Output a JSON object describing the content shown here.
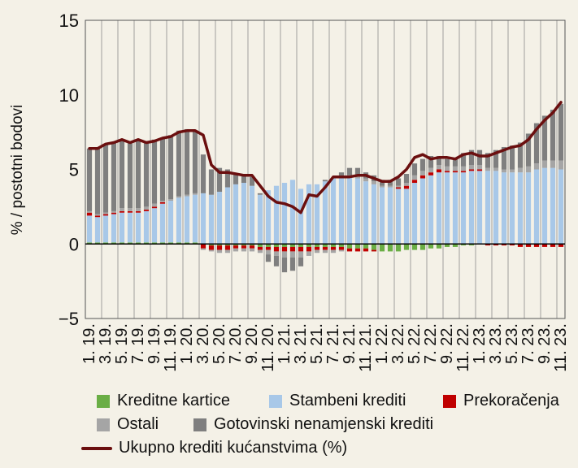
{
  "chart_data": {
    "type": "bar",
    "stacked": true,
    "title": "",
    "xlabel": "",
    "ylabel": "% / postotni bodovi",
    "ylim": [
      -5,
      15
    ],
    "yticks": [
      -5,
      0,
      5,
      10,
      15
    ],
    "ytick_labels": [
      "−5",
      "0",
      "5",
      "10",
      "15"
    ],
    "grid": "vertical",
    "legend_position": "bottom",
    "categories": [
      "1.19.",
      "2.19.",
      "3.19.",
      "4.19.",
      "5.19.",
      "6.19.",
      "7.19.",
      "8.19.",
      "9.19.",
      "10.19.",
      "11.19.",
      "12.19.",
      "1.20.",
      "2.20.",
      "3.20.",
      "4.20.",
      "5.20.",
      "6.20.",
      "7.20.",
      "8.20.",
      "9.20.",
      "10.20.",
      "11.20.",
      "12.20.",
      "1.21.",
      "2.21.",
      "3.21.",
      "4.21.",
      "5.21.",
      "6.21.",
      "7.21.",
      "8.21.",
      "9.21.",
      "10.21.",
      "11.21.",
      "12.21.",
      "1.22.",
      "2.22.",
      "3.22.",
      "4.22.",
      "5.22.",
      "6.22.",
      "7.22.",
      "8.22.",
      "9.22.",
      "10.22.",
      "11.22.",
      "12.22.",
      "1.23.",
      "2.23.",
      "3.23.",
      "4.23.",
      "5.23.",
      "6.23.",
      "7.23.",
      "8.23.",
      "9.23.",
      "10.23.",
      "11.23."
    ],
    "tick_labels": [
      "1. 19.",
      "3. 19.",
      "5. 19.",
      "7. 19.",
      "9. 19.",
      "11. 19.",
      "1. 20.",
      "3. 20.",
      "5. 20.",
      "7. 20.",
      "9. 20.",
      "11. 20.",
      "1. 21.",
      "3. 21.",
      "5. 21.",
      "7. 21.",
      "9. 21.",
      "11. 21.",
      "1. 22.",
      "3. 22.",
      "5. 22.",
      "7. 22.",
      "9. 22.",
      "11. 22.",
      "1. 23.",
      "3. 23.",
      "5. 23.",
      "7. 23.",
      "9. 23.",
      "11. 23."
    ],
    "series": [
      {
        "name": "Kreditne kartice",
        "color": "#6aae45",
        "values": [
          0.1,
          0.1,
          0.1,
          0.1,
          0.1,
          0.1,
          0.1,
          0.1,
          0.1,
          0.1,
          0.1,
          0.1,
          0.1,
          0.1,
          0.0,
          -0.1,
          -0.1,
          -0.1,
          -0.1,
          -0.1,
          -0.1,
          -0.2,
          -0.2,
          -0.2,
          -0.2,
          -0.2,
          -0.2,
          -0.2,
          -0.2,
          -0.2,
          -0.2,
          -0.2,
          -0.3,
          -0.3,
          -0.3,
          -0.4,
          -0.5,
          -0.5,
          -0.5,
          -0.4,
          -0.4,
          -0.4,
          -0.3,
          -0.3,
          -0.2,
          -0.2,
          -0.1,
          -0.1,
          0.0,
          0.0,
          0.0,
          0.0,
          0.0,
          0.0,
          0.0,
          0.0,
          0.0,
          0.0,
          0.0
        ]
      },
      {
        "name": "Stambeni krediti",
        "color": "#a8c8e8",
        "values": [
          1.8,
          1.7,
          1.8,
          1.9,
          2.0,
          2.0,
          2.0,
          2.1,
          2.3,
          2.6,
          2.8,
          3.0,
          3.1,
          3.2,
          3.4,
          3.3,
          3.5,
          3.8,
          4.0,
          4.1,
          3.9,
          3.3,
          3.6,
          3.9,
          4.1,
          4.3,
          3.7,
          4.0,
          4.0,
          4.2,
          4.4,
          4.4,
          4.5,
          4.4,
          4.2,
          4.0,
          3.8,
          3.8,
          3.7,
          3.7,
          4.1,
          4.4,
          4.6,
          4.8,
          4.8,
          4.8,
          4.8,
          4.9,
          4.9,
          4.9,
          4.9,
          4.8,
          4.8,
          4.8,
          4.8,
          5.0,
          5.1,
          5.1,
          5.0
        ]
      },
      {
        "name": "Prekoračenja",
        "color": "#c00000",
        "values": [
          0.2,
          0.1,
          0.1,
          0.1,
          0.1,
          0.1,
          0.1,
          0.1,
          0.1,
          0.1,
          0.0,
          0.0,
          0.0,
          0.0,
          -0.3,
          -0.3,
          -0.3,
          -0.3,
          -0.2,
          -0.2,
          -0.2,
          -0.2,
          -0.2,
          -0.3,
          -0.3,
          -0.3,
          -0.3,
          -0.3,
          -0.2,
          -0.2,
          -0.2,
          -0.2,
          -0.2,
          -0.2,
          -0.2,
          -0.1,
          0.0,
          0.0,
          0.1,
          0.2,
          0.2,
          0.2,
          0.2,
          0.2,
          0.1,
          0.1,
          0.1,
          0.1,
          0.1,
          -0.1,
          -0.1,
          -0.1,
          -0.1,
          -0.2,
          -0.2,
          -0.2,
          -0.2,
          -0.2,
          -0.2
        ]
      },
      {
        "name": "Ostali",
        "color": "#a5a5a5",
        "values": [
          0.1,
          0.1,
          0.1,
          0.1,
          0.2,
          0.2,
          0.2,
          0.2,
          0.2,
          0.1,
          0.1,
          0.1,
          0.1,
          0.1,
          -0.1,
          -0.1,
          -0.2,
          -0.2,
          -0.2,
          -0.2,
          -0.2,
          -0.2,
          -0.3,
          -0.3,
          -0.4,
          -0.4,
          -0.4,
          -0.3,
          -0.2,
          -0.2,
          -0.2,
          -0.1,
          0.1,
          0.2,
          0.2,
          0.2,
          0.1,
          0.1,
          0.1,
          0.2,
          0.3,
          0.3,
          0.3,
          0.3,
          0.3,
          0.3,
          0.3,
          0.3,
          0.3,
          0.2,
          0.2,
          0.2,
          0.2,
          0.3,
          0.4,
          0.4,
          0.5,
          0.5,
          0.6
        ]
      },
      {
        "name": "Gotovinski nenamjenski krediti",
        "color": "#7f7f7f",
        "values": [
          4.2,
          4.4,
          4.6,
          4.6,
          4.6,
          4.4,
          4.6,
          4.3,
          4.3,
          4.2,
          4.3,
          4.4,
          4.4,
          4.2,
          2.6,
          1.7,
          1.6,
          1.2,
          0.7,
          0.5,
          0.6,
          0.1,
          -0.5,
          -0.7,
          -1.0,
          -0.9,
          -0.6,
          0.0,
          0.0,
          0.1,
          0.0,
          0.4,
          0.5,
          0.5,
          0.4,
          0.4,
          0.4,
          0.4,
          0.5,
          0.6,
          0.8,
          0.8,
          0.8,
          0.6,
          0.5,
          0.6,
          0.9,
          1.0,
          1.0,
          1.0,
          1.2,
          1.5,
          1.6,
          1.7,
          2.2,
          2.7,
          3.0,
          3.4,
          3.8
        ]
      }
    ],
    "line_series": {
      "name": "Ukupno krediti kućanstvima (%)",
      "color": "#6b0f0f",
      "values": [
        6.4,
        6.4,
        6.7,
        6.8,
        7.0,
        6.8,
        7.0,
        6.8,
        6.9,
        7.1,
        7.2,
        7.5,
        7.6,
        7.6,
        7.3,
        5.3,
        4.8,
        4.8,
        4.7,
        4.6,
        4.6,
        3.9,
        3.2,
        2.8,
        2.7,
        2.5,
        2.1,
        3.3,
        3.2,
        3.8,
        4.5,
        4.5,
        4.5,
        4.6,
        4.6,
        4.4,
        4.2,
        4.2,
        4.5,
        5.0,
        5.8,
        6.0,
        5.7,
        5.8,
        5.8,
        5.7,
        6.0,
        6.1,
        5.9,
        5.9,
        6.1,
        6.3,
        6.5,
        6.6,
        7.0,
        7.7,
        8.3,
        8.8,
        9.5
      ]
    }
  },
  "legend": {
    "credit_cards": "Kreditne kartice",
    "housing": "Stambeni krediti",
    "overdrafts": "Prekoračenja",
    "others": "Ostali",
    "cash_loans": "Gotovinski nenamjenski krediti",
    "total": "Ukupno krediti kućanstvima (%)"
  }
}
